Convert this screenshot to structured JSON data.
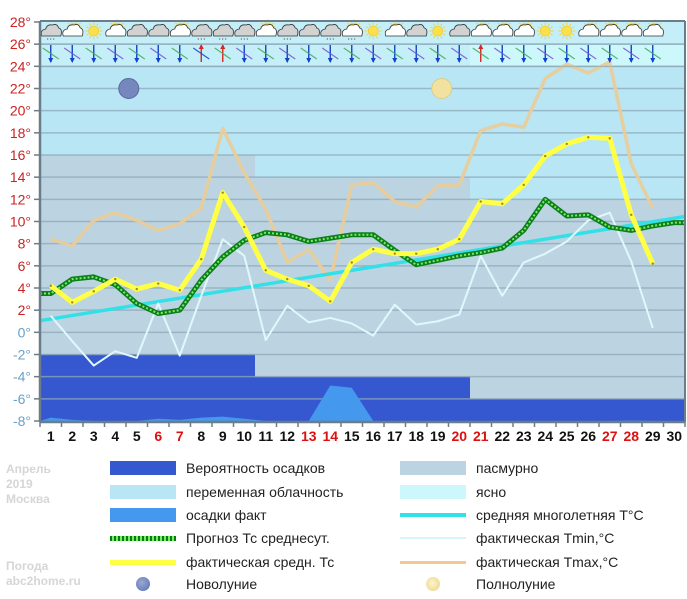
{
  "chart_data": {
    "type": "line",
    "title": "",
    "xlabel": "",
    "ylabel": "",
    "x": [
      1,
      2,
      3,
      4,
      5,
      6,
      7,
      8,
      9,
      10,
      11,
      12,
      13,
      14,
      15,
      16,
      17,
      18,
      19,
      20,
      21,
      22,
      23,
      24,
      25,
      26,
      27,
      28,
      29,
      30
    ],
    "x_tick_labels": [
      "1",
      "2",
      "3",
      "4",
      "5",
      "6",
      "7",
      "8",
      "9",
      "10",
      "11",
      "12",
      "13",
      "14",
      "15",
      "16",
      "17",
      "18",
      "19",
      "20",
      "21",
      "22",
      "23",
      "24",
      "25",
      "26",
      "27",
      "28",
      "29",
      "30"
    ],
    "weekend_days": [
      6,
      7,
      13,
      14,
      20,
      21,
      27,
      28
    ],
    "ylim": [
      -8,
      28
    ],
    "y_ticks": [
      28,
      26,
      24,
      22,
      20,
      18,
      16,
      14,
      12,
      10,
      8,
      6,
      4,
      2,
      0,
      -2,
      -4,
      -6,
      -8
    ],
    "y_tick_labels": [
      "28°",
      "26°",
      "24°",
      "22°",
      "20°",
      "18°",
      "16°",
      "14°",
      "12°",
      "10°",
      "8°",
      "6°",
      "4°",
      "2°",
      "0°",
      "-2°",
      "-4°",
      "-6°",
      "-8°"
    ],
    "grid": true,
    "series": [
      {
        "name": "фактическая средн. Тс",
        "color": "#ffff44",
        "values": [
          4.2,
          2.7,
          3.7,
          4.8,
          3.9,
          4.4,
          3.8,
          6.6,
          12.6,
          9.5,
          5.6,
          4.8,
          4.2,
          2.8,
          6.3,
          7.5,
          7.1,
          7.1,
          7.5,
          8.4,
          11.8,
          11.6,
          13.3,
          15.9,
          17.0,
          17.6,
          17.5,
          10.6,
          6.2,
          null
        ]
      },
      {
        "name": "фактическая Tmax,°С",
        "color": "#e8cc9a",
        "values": [
          8.4,
          7.8,
          10.1,
          10.8,
          10.1,
          9.2,
          9.8,
          11.2,
          18.4,
          14.4,
          11.1,
          6.3,
          7.5,
          4.7,
          13.3,
          13.5,
          11.8,
          11.3,
          13.2,
          13.3,
          18.2,
          18.8,
          18.5,
          22.9,
          24.2,
          23.4,
          24.4,
          15.2,
          11.2,
          null
        ]
      },
      {
        "name": "фактическая Tmin,°С",
        "color": "#dff8fc",
        "values": [
          1.5,
          -0.8,
          -3.0,
          -1.7,
          -2.3,
          2.6,
          -2.1,
          3.3,
          8.4,
          6.9,
          -0.7,
          2.4,
          0.9,
          1.3,
          0.8,
          -0.3,
          2.5,
          0.7,
          1.0,
          1.6,
          6.9,
          3.3,
          6.3,
          7.1,
          8.2,
          10.1,
          10.8,
          6.4,
          0.4,
          null
        ]
      },
      {
        "name": "Прогноз Тс среднесут.",
        "color": "#119922",
        "values": [
          3.5,
          4.8,
          5.0,
          4.3,
          2.6,
          1.7,
          2.0,
          4.7,
          6.8,
          8.3,
          9.0,
          8.8,
          8.2,
          8.5,
          8.8,
          8.8,
          7.4,
          6.1,
          6.5,
          6.9,
          7.2,
          7.6,
          9.2,
          12.0,
          10.5,
          10.6,
          9.5,
          9.2,
          9.6,
          9.9
        ]
      },
      {
        "name": "средняя многолетняя T°С",
        "color": "#33e0e8",
        "values": [
          1.2,
          1.5,
          1.8,
          2.2,
          2.5,
          2.8,
          3.1,
          3.4,
          3.7,
          4.0,
          4.3,
          4.7,
          5.0,
          5.3,
          5.6,
          5.9,
          6.2,
          6.5,
          6.9,
          7.2,
          7.5,
          7.8,
          8.1,
          8.4,
          8.7,
          9.1,
          9.4,
          9.7,
          10.0,
          10.3
        ]
      },
      {
        "name": "осадки факт",
        "color": "#4499ee",
        "values": [
          0.3,
          0.1,
          0,
          0,
          0,
          0.2,
          0.1,
          0.3,
          0.4,
          0.2,
          0,
          0,
          0,
          3.2,
          3.0,
          0,
          0,
          0,
          0,
          0,
          0,
          0,
          0,
          0,
          0,
          0,
          0,
          0.05,
          0,
          0
        ],
        "baseline": -8
      }
    ],
    "background_bands": [
      {
        "days": [
          1,
          10
        ],
        "precip_probability_top": -2,
        "overcast_top": 16,
        "variable_top": 24
      },
      {
        "days": [
          11,
          20
        ],
        "precip_probability_top": -4,
        "overcast_top": 14,
        "variable_top": 24
      },
      {
        "days": [
          21,
          30
        ],
        "precip_probability_top": -6,
        "overcast_top": 12,
        "variable_top": 24,
        "clear_top": 26
      }
    ],
    "moon_phases": [
      {
        "name": "Новолуние",
        "day": 5,
        "temp": 22
      },
      {
        "name": "Полнолуние",
        "day": 19,
        "temp": 22
      }
    ],
    "weather_icons": [
      "cloudy-rain",
      "partly-cloudy",
      "sunny",
      "partly-cloudy",
      "cloudy",
      "cloudy",
      "partly-cloudy",
      "cloudy-rain",
      "cloudy-rain",
      "cloudy-rain",
      "partly-cloudy",
      "cloudy-rain",
      "cloudy",
      "cloudy-rain",
      "partly-cloudy-rain",
      "sunny",
      "partly-cloudy",
      "cloudy",
      "sunny",
      "cloudy",
      "partly-cloudy",
      "partly-cloudy",
      "partly-cloudy",
      "sunny",
      "sunny",
      "partly-cloudy",
      "partly-cloudy",
      "partly-cloudy",
      "partly-cloudy",
      "none"
    ],
    "legend_position": "bottom"
  },
  "colors": {
    "precip_probability": "#3558d0",
    "variable_clouds": "#b8e6f4",
    "precip_fact": "#4499ee",
    "overcast": "#bcd4e2",
    "clear": "#ccf8fb",
    "grid": "#8fa9b8",
    "axis": "#6b7d88",
    "y_label_pos": "#cc2222",
    "y_label_neg": "#6aa0c8",
    "weekend": "#dd1111",
    "weekday": "#111111"
  },
  "side_note": {
    "line1": "Апрель",
    "line2": "2019",
    "line3": "Москва",
    "line4": "Погода",
    "line5": "abc2home.ru"
  },
  "legend": {
    "left": [
      {
        "label": "Вероятность осадков",
        "kind": "swatch",
        "color": "#3558d0"
      },
      {
        "label": "переменная облачность",
        "kind": "swatch",
        "color": "#b8e6f4"
      },
      {
        "label": "осадки факт",
        "kind": "swatch",
        "color": "#4499ee"
      },
      {
        "label": "Прогноз Тс среднесут.",
        "kind": "dotted",
        "color": "#119922"
      },
      {
        "label": "фактическая средн. Тс",
        "kind": "line",
        "color": "#ffff44"
      },
      {
        "label": "Новолуние",
        "kind": "moon-new",
        "color": "#6e83b8"
      }
    ],
    "right": [
      {
        "label": "пасмурно",
        "kind": "swatch",
        "color": "#bcd4e2"
      },
      {
        "label": "ясно",
        "kind": "swatch",
        "color": "#ccf8fb"
      },
      {
        "label": "средняя многолетняя T°С",
        "kind": "line",
        "color": "#33e0e8"
      },
      {
        "label": "фактическая Tmin,°С",
        "kind": "thin",
        "color": "#dff8fc"
      },
      {
        "label": "фактическая Tmax,°С",
        "kind": "line",
        "color": "#f0c890"
      },
      {
        "label": "Полнолуние",
        "kind": "moon-full",
        "color": "#f3e3a0"
      }
    ]
  }
}
